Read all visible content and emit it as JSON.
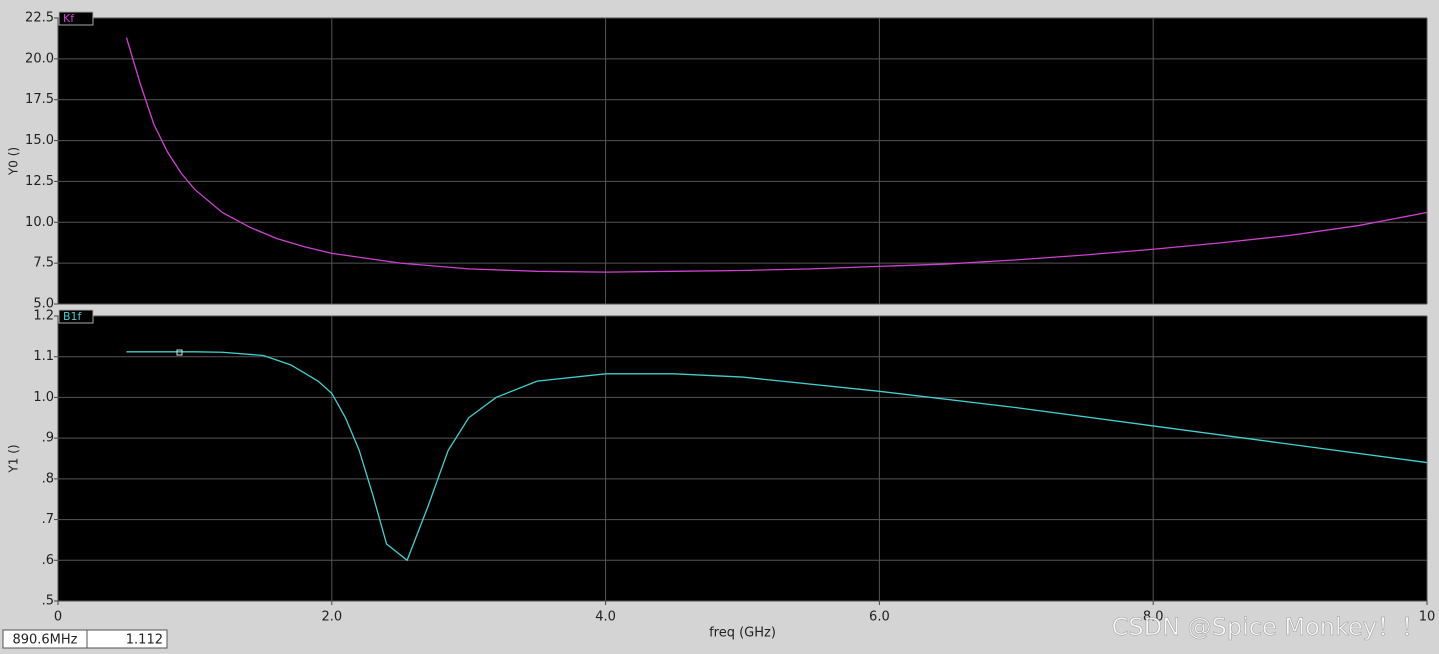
{
  "chart_data": [
    {
      "type": "line",
      "ylabel": "Y0 ()",
      "x": [
        0.5,
        0.6,
        0.7,
        0.8,
        0.9,
        1.0,
        1.2,
        1.4,
        1.6,
        1.8,
        2.0,
        2.5,
        3.0,
        3.5,
        4.0,
        4.5,
        5.0,
        5.5,
        6.0,
        6.5,
        7.0,
        7.5,
        8.0,
        8.5,
        9.0,
        9.5,
        10.0
      ],
      "series": [
        {
          "name": "Kf",
          "color": "#d040d0",
          "values": [
            21.3,
            18.5,
            16.0,
            14.3,
            13.0,
            12.0,
            10.6,
            9.7,
            9.0,
            8.5,
            8.1,
            7.5,
            7.15,
            7.0,
            6.95,
            7.0,
            7.05,
            7.15,
            7.3,
            7.45,
            7.7,
            8.0,
            8.35,
            8.75,
            9.2,
            9.8,
            10.6
          ]
        }
      ],
      "xlim": [
        0,
        10
      ],
      "xticks": [
        0,
        2,
        4,
        6,
        8,
        10
      ],
      "ylim": [
        5,
        22.5
      ],
      "yticks": [
        {
          "value": 5,
          "label": "5.0"
        },
        7.5,
        {
          "value": 10,
          "label": "10.0"
        },
        12.5,
        {
          "value": 15,
          "label": "15.0"
        },
        17.5,
        {
          "value": 20,
          "label": "20.0"
        },
        22.5
      ],
      "grid": true
    },
    {
      "type": "line",
      "ylabel": "Y1 ()",
      "xlabel": "freq (GHz)",
      "x": [
        0.5,
        1.0,
        1.2,
        1.5,
        1.7,
        1.9,
        2.0,
        2.1,
        2.2,
        2.3,
        2.4,
        2.55,
        2.7,
        2.85,
        3.0,
        3.2,
        3.5,
        4.0,
        4.5,
        5.0,
        6.0,
        7.0,
        8.0,
        9.0,
        10.0
      ],
      "series": [
        {
          "name": "B1f",
          "color": "#40d0d0",
          "values": [
            1.112,
            1.112,
            1.111,
            1.103,
            1.08,
            1.04,
            1.01,
            0.95,
            0.87,
            0.76,
            0.64,
            0.6,
            0.73,
            0.87,
            0.95,
            1.0,
            1.04,
            1.058,
            1.058,
            1.05,
            1.015,
            0.975,
            0.93,
            0.885,
            0.84
          ]
        }
      ],
      "xlim": [
        0,
        10
      ],
      "xticks": [
        0,
        {
          "value": 2,
          "label": "2.0"
        },
        {
          "value": 4,
          "label": "4.0"
        },
        {
          "value": 6,
          "label": "6.0"
        },
        {
          "value": 8,
          "label": "8.0"
        },
        10
      ],
      "ylim": [
        0.5,
        1.2
      ],
      "yticks": [
        {
          "value": 0.5,
          "label": ".5"
        },
        {
          "value": 0.6,
          "label": ".6"
        },
        {
          "value": 0.7,
          "label": ".7"
        },
        {
          "value": 0.8,
          "label": ".8"
        },
        {
          "value": 0.9,
          "label": ".9"
        },
        {
          "value": 1.0,
          "label": "1.0"
        },
        1.1,
        1.2
      ],
      "grid": true
    }
  ],
  "cursor": {
    "x": "890.6MHz",
    "y": "1.112"
  },
  "watermark": "CSDN @Spice Monkey！！"
}
